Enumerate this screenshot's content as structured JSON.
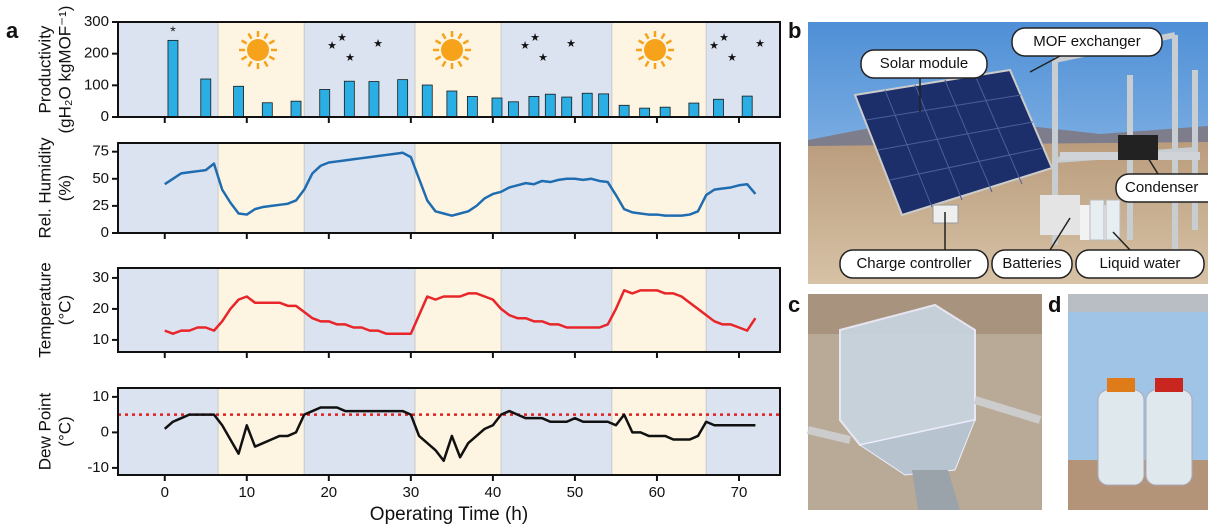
{
  "panel_letters": [
    "a",
    "b",
    "c",
    "d"
  ],
  "photo_labels": [
    "Solar module",
    "MOF exchanger",
    "Condenser",
    "Charge controller",
    "Batteries",
    "Liquid water"
  ],
  "chart_data": [
    {
      "type": "bar",
      "y_label": [
        "Productivity",
        "(gH₂O kgMOF⁻¹)"
      ],
      "annotation": "*",
      "color": "#2aaee4",
      "x": [
        1,
        5,
        9,
        12.5,
        16,
        19.5,
        22.5,
        25.5,
        29,
        32,
        35,
        37.5,
        40.5,
        42.5,
        45,
        47,
        49,
        51.5,
        53.5,
        56,
        58.5,
        61,
        64.5,
        67.5,
        71
      ],
      "values": [
        242,
        120,
        97,
        45,
        50,
        87,
        113,
        112,
        118,
        101,
        82,
        65,
        60,
        48,
        65,
        72,
        63,
        75,
        73,
        37,
        28,
        31,
        44,
        56,
        66
      ],
      "xlim": [
        -5.7,
        75
      ],
      "xticks": [
        0,
        10,
        20,
        30,
        40,
        50,
        60,
        70
      ],
      "xtick_labels": false,
      "ylim": [
        0,
        300
      ],
      "yticks": [
        0,
        100,
        200,
        300
      ],
      "day_periods": [
        [
          6.5,
          17
        ],
        [
          30.5,
          41
        ],
        [
          54.5,
          66
        ]
      ],
      "day_color": "#fdf5e2",
      "night_color": "#dce3f0"
    },
    {
      "type": "line",
      "y_label": [
        "Rel. Humidity",
        "(%)"
      ],
      "color": "#1f6db0",
      "x": [
        0,
        1,
        2,
        3,
        4,
        5,
        6,
        7,
        8,
        9,
        10,
        11,
        12,
        13,
        14,
        15,
        16,
        17,
        18,
        19,
        20,
        21,
        22,
        23,
        24,
        25,
        26,
        27,
        28,
        29,
        30,
        31,
        32,
        33,
        34,
        35,
        36,
        37,
        38,
        39,
        40,
        41,
        42,
        43,
        44,
        45,
        46,
        47,
        48,
        49,
        50,
        51,
        52,
        53,
        54,
        55,
        56,
        57,
        58,
        59,
        60,
        61,
        62,
        63,
        64,
        65,
        66,
        67,
        68,
        69,
        70,
        71,
        72
      ],
      "values": [
        45,
        50,
        55,
        56,
        57,
        58,
        64,
        40,
        28,
        18,
        17,
        22,
        24,
        25,
        26,
        27,
        30,
        40,
        55,
        62,
        65,
        66,
        67,
        68,
        69,
        70,
        71,
        72,
        73,
        74,
        70,
        50,
        30,
        20,
        18,
        16,
        18,
        20,
        25,
        32,
        36,
        38,
        42,
        44,
        46,
        45,
        48,
        47,
        49,
        50,
        50,
        49,
        50,
        48,
        47,
        35,
        22,
        19,
        18,
        17,
        17,
        16,
        16,
        16,
        17,
        20,
        35,
        40,
        41,
        42,
        44,
        45,
        36
      ],
      "xlim": [
        -5.7,
        75
      ],
      "xticks": [
        0,
        10,
        20,
        30,
        40,
        50,
        60,
        70
      ],
      "xtick_labels": false,
      "ylim": [
        0,
        83
      ],
      "yticks": [
        0,
        25,
        50,
        75
      ],
      "day_periods": [
        [
          6.5,
          17
        ],
        [
          30.5,
          41
        ],
        [
          54.5,
          66
        ]
      ],
      "day_color": "#fdf5e2",
      "night_color": "#dce3f0"
    },
    {
      "type": "line",
      "y_label": [
        "Temperature",
        "(°C)"
      ],
      "color": "#e8262a",
      "x": [
        0,
        1,
        2,
        3,
        4,
        5,
        6,
        7,
        8,
        9,
        10,
        11,
        12,
        13,
        14,
        15,
        16,
        17,
        18,
        19,
        20,
        21,
        22,
        23,
        24,
        25,
        26,
        27,
        28,
        29,
        30,
        31,
        32,
        33,
        34,
        35,
        36,
        37,
        38,
        39,
        40,
        41,
        42,
        43,
        44,
        45,
        46,
        47,
        48,
        49,
        50,
        51,
        52,
        53,
        54,
        55,
        56,
        57,
        58,
        59,
        60,
        61,
        62,
        63,
        64,
        65,
        66,
        67,
        68,
        69,
        70,
        71,
        72
      ],
      "values": [
        13,
        12,
        13,
        13,
        14,
        14,
        13,
        16,
        20,
        23,
        24,
        22,
        22,
        22,
        22,
        21,
        21,
        19,
        17,
        16,
        16,
        15,
        15,
        14,
        14,
        13,
        13,
        12,
        12,
        12,
        12,
        18,
        24,
        23,
        24,
        24,
        24,
        25,
        25,
        24,
        23,
        20,
        18,
        17,
        17,
        16,
        16,
        15,
        15,
        14,
        14,
        14,
        14,
        14,
        15,
        20,
        26,
        25,
        26,
        26,
        26,
        25,
        25,
        24,
        22,
        20,
        18,
        16,
        15,
        15,
        14,
        13,
        17
      ],
      "xlim": [
        -5.7,
        75
      ],
      "xticks": [
        0,
        10,
        20,
        30,
        40,
        50,
        60,
        70
      ],
      "xtick_labels": false,
      "ylim": [
        6.1,
        33.2
      ],
      "yticks": [
        10,
        20,
        30
      ],
      "day_periods": [
        [
          6.5,
          17
        ],
        [
          30.5,
          41
        ],
        [
          54.5,
          66
        ]
      ],
      "day_color": "#fdf5e2",
      "night_color": "#dce3f0"
    },
    {
      "type": "line",
      "y_label": [
        "Dew Point",
        "(°C)"
      ],
      "x_label": "Operating Time (h)",
      "color": "#111111",
      "threshold": 5,
      "threshold_color": "#e02020",
      "x": [
        0,
        1,
        2,
        3,
        4,
        5,
        6,
        7,
        8,
        9,
        10,
        11,
        12,
        13,
        14,
        15,
        16,
        17,
        18,
        19,
        20,
        21,
        22,
        23,
        24,
        25,
        26,
        27,
        28,
        29,
        30,
        31,
        32,
        33,
        34,
        35,
        36,
        37,
        38,
        39,
        40,
        41,
        42,
        43,
        44,
        45,
        46,
        47,
        48,
        49,
        50,
        51,
        52,
        53,
        54,
        55,
        56,
        57,
        58,
        59,
        60,
        61,
        62,
        63,
        64,
        65,
        66,
        67,
        68,
        69,
        70,
        71,
        72
      ],
      "values": [
        1,
        3,
        4,
        5,
        5,
        5,
        5,
        2,
        -2,
        -6,
        2,
        -4,
        -3,
        -2,
        -1,
        -1,
        0,
        5,
        6,
        7,
        7,
        7,
        6,
        6,
        6,
        6,
        6,
        6,
        6,
        6,
        5,
        -1,
        -3,
        -5,
        -8,
        -1,
        -7,
        -3,
        -1,
        1,
        2,
        5,
        6,
        5,
        4,
        4,
        4,
        3,
        3,
        3,
        4,
        3,
        3,
        3,
        3,
        2,
        5,
        0,
        0,
        -1,
        -1,
        -1,
        -2,
        -2,
        -2,
        -1,
        3,
        2,
        2,
        2,
        2,
        2,
        2
      ],
      "xlim": [
        -5.7,
        75
      ],
      "xticks": [
        0,
        10,
        20,
        30,
        40,
        50,
        60,
        70
      ],
      "xtick_labels": true,
      "ylim": [
        -12,
        12.5
      ],
      "yticks": [
        -10,
        0,
        10
      ],
      "day_periods": [
        [
          6.5,
          17
        ],
        [
          30.5,
          41
        ],
        [
          54.5,
          66
        ]
      ],
      "day_color": "#fdf5e2",
      "night_color": "#dce3f0"
    }
  ]
}
